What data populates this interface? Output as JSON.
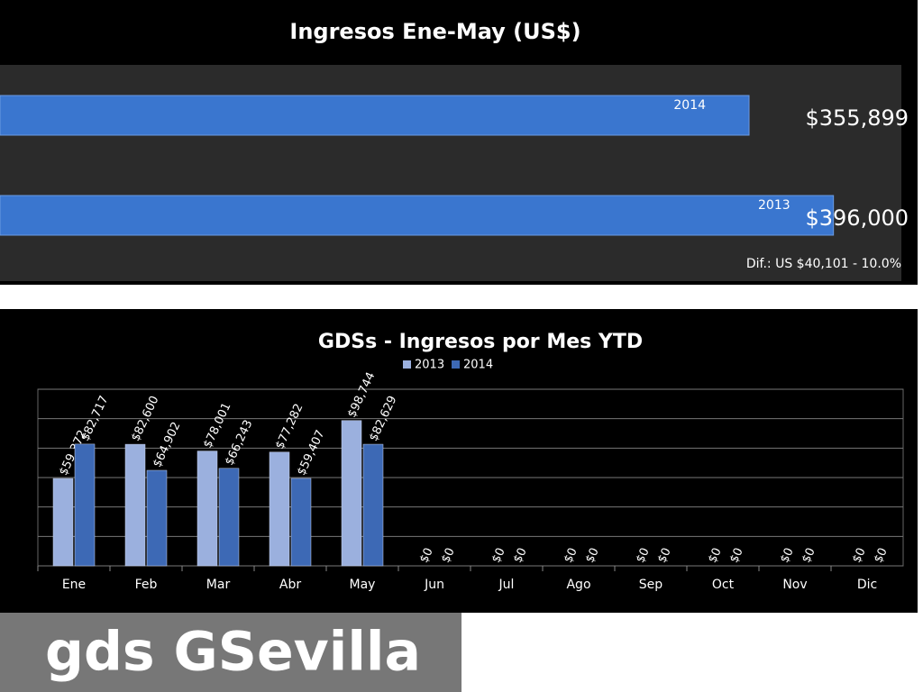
{
  "chart_data": [
    {
      "type": "hbar",
      "title": "Ingresos  Ene-May (US$)",
      "categories": [
        "2014",
        "2013"
      ],
      "values": [
        355899,
        396000
      ],
      "value_labels": [
        "$355,899",
        "$396,000"
      ],
      "color": "#3a76cf",
      "xlim": [
        0,
        400000
      ],
      "annotation": "Dif.: US $40,101 - 10.0%"
    },
    {
      "type": "bar",
      "title": "GDSs - Ingresos por Mes YTD",
      "categories": [
        "Ene",
        "Feb",
        "Mar",
        "Abr",
        "May",
        "Jun",
        "Jul",
        "Ago",
        "Sep",
        "Oct",
        "Nov",
        "Dic"
      ],
      "series": [
        {
          "name": "2013",
          "color": "#9bb0de",
          "values": [
            59372,
            82600,
            78001,
            77282,
            98744,
            0,
            0,
            0,
            0,
            0,
            0,
            0
          ],
          "value_labels": [
            "$59,372",
            "$82,600",
            "$78,001",
            "$77,282",
            "$98,744",
            "$0",
            "$0",
            "$0",
            "$0",
            "$0",
            "$0",
            "$0"
          ]
        },
        {
          "name": "2014",
          "color": "#3d69b5",
          "values": [
            82717,
            64902,
            66243,
            59407,
            82629,
            0,
            0,
            0,
            0,
            0,
            0,
            0
          ],
          "value_labels": [
            "$82,717",
            "$64,902",
            "$66,243",
            "$59,407",
            "$82,629",
            "$0",
            "$0",
            "$0",
            "$0",
            "$0",
            "$0",
            "$0"
          ]
        }
      ],
      "ylim": [
        0,
        120000
      ],
      "yticks": [
        0,
        20000,
        40000,
        60000,
        80000,
        100000,
        120000
      ],
      "grid": true
    }
  ],
  "caption": "gds GSevilla"
}
